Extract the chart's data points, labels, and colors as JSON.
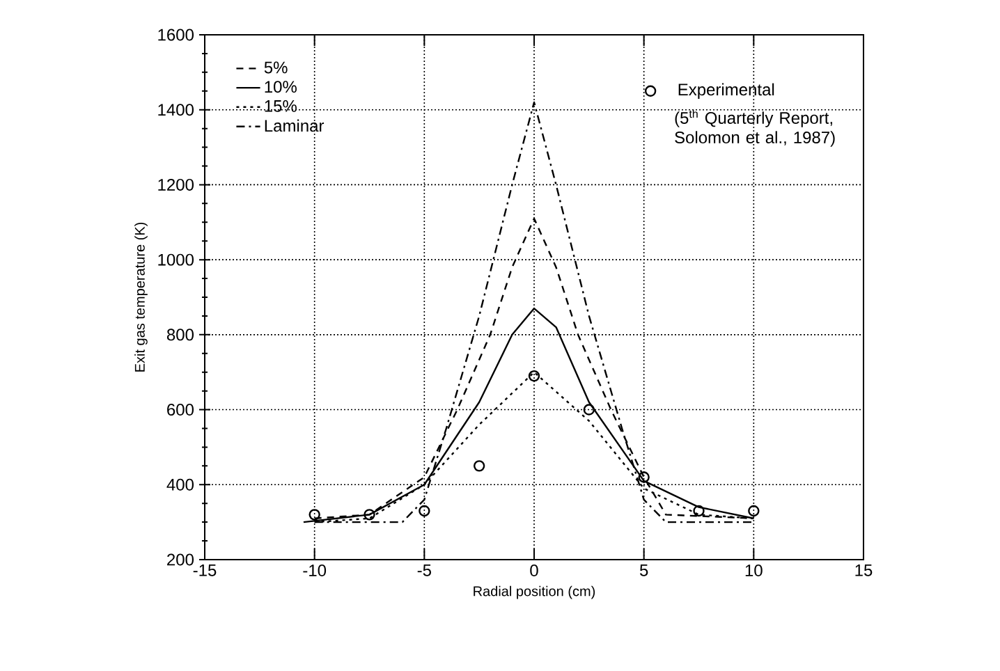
{
  "chart_data": {
    "type": "line",
    "xlabel": "Radial position (cm)",
    "ylabel": "Exit gas temperature (K)",
    "xlim": [
      -15,
      15
    ],
    "xticks": [
      -15,
      -10,
      -5,
      0,
      5,
      10,
      15
    ],
    "ylim": [
      200,
      1600
    ],
    "yticks": [
      200,
      400,
      600,
      800,
      1000,
      1200,
      1400,
      1600
    ],
    "grid": true,
    "legend": "top left",
    "series": [
      {
        "name": "5%",
        "color": "#000000",
        "line_style": "dashed",
        "marker": "none",
        "x": [
          -10,
          -7.5,
          -5,
          -3.5,
          -2,
          -1,
          0,
          1,
          2,
          3.5,
          5,
          6,
          10
        ],
        "values": [
          310,
          320,
          420,
          600,
          800,
          980,
          1110,
          980,
          800,
          600,
          420,
          320,
          310
        ]
      },
      {
        "name": "10%",
        "color": "#000000",
        "line_style": "solid",
        "marker": "none",
        "x": [
          -10.5,
          -7.5,
          -5,
          -2.5,
          -1,
          0,
          1,
          2.5,
          5,
          7.5,
          10
        ],
        "values": [
          300,
          320,
          400,
          620,
          800,
          870,
          820,
          620,
          410,
          340,
          310
        ]
      },
      {
        "name": "15%",
        "color": "#000000",
        "line_style": "dotted",
        "marker": "none",
        "x": [
          -10,
          -7.5,
          -5,
          -2.5,
          0,
          2.5,
          5,
          7.5,
          10
        ],
        "values": [
          300,
          310,
          400,
          560,
          700,
          570,
          390,
          320,
          310
        ]
      },
      {
        "name": "Laminar",
        "color": "#000000",
        "line_style": "dashdot",
        "marker": "none",
        "x": [
          -10,
          -6,
          -5,
          -4,
          -2.5,
          -1,
          0,
          1,
          2.5,
          4,
          5,
          6,
          10
        ],
        "values": [
          300,
          300,
          360,
          550,
          850,
          1200,
          1420,
          1200,
          850,
          550,
          360,
          300,
          300
        ]
      },
      {
        "name": "Experimental",
        "type": "scatter",
        "color": "#000000",
        "marker": "circle",
        "x": [
          -10,
          -7.5,
          -5,
          -2.5,
          0,
          2.5,
          5,
          7.5,
          10
        ],
        "values": [
          320,
          320,
          330,
          450,
          690,
          600,
          420,
          330,
          330
        ]
      }
    ],
    "annotations": [
      "(5$^{th}$ Quarterly Report, Solomon et al., 1987)"
    ]
  }
}
